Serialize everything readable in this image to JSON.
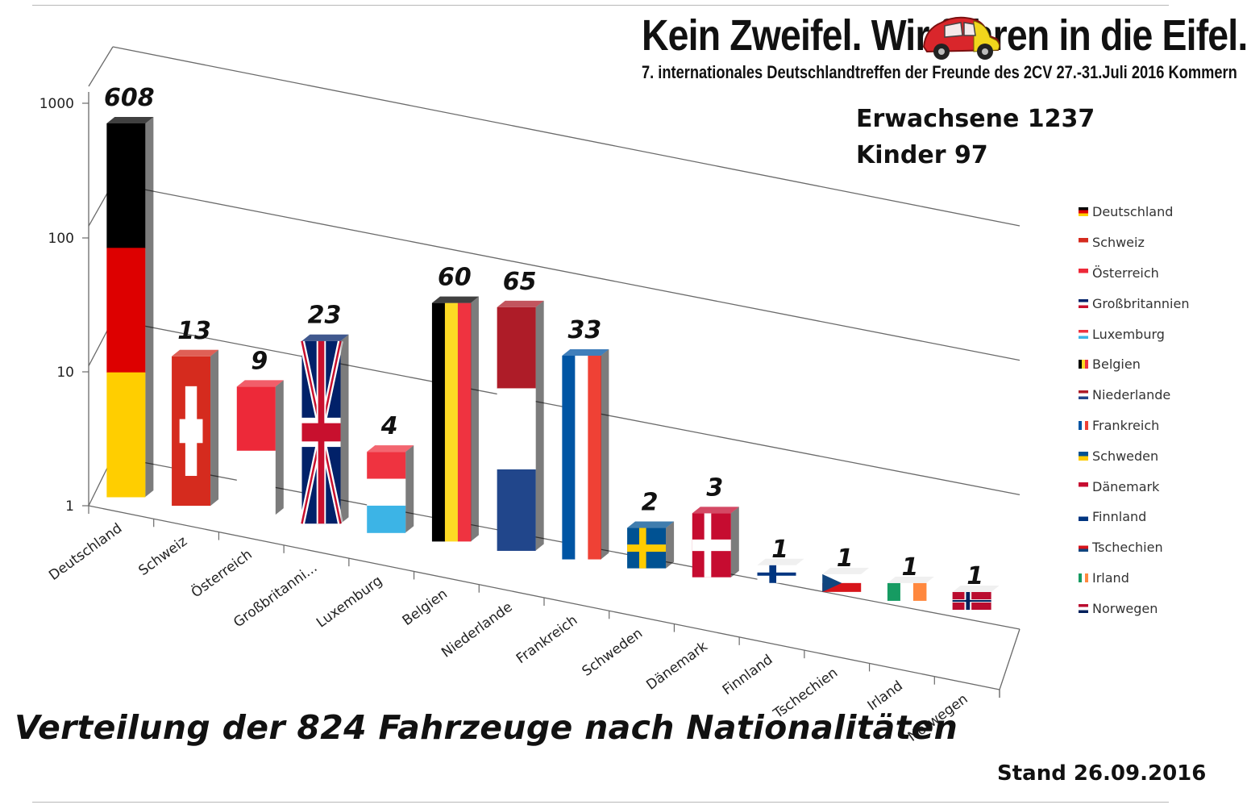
{
  "header": {
    "title": "Kein Zweifel. Wir fahren in die Eifel.",
    "subtitle": "7. internationales Deutschlandtreffen der Freunde des 2CV  27.-31.Juli 2016 Kommern"
  },
  "stats": {
    "adults": "Erwachsene 1237",
    "children": "Kinder 97"
  },
  "footer": {
    "stand": "Stand 26.09.2016"
  },
  "chart_data": {
    "type": "bar",
    "title": "Verteilung der 824 Fahrzeuge nach Nationalitäten",
    "y_scale": "log",
    "ylim": [
      1,
      1000
    ],
    "y_ticks": [
      "1",
      "10",
      "100",
      "1000"
    ],
    "legend_position": "right",
    "categories": [
      "Deutschland",
      "Schweiz",
      "Österreich",
      "Großbritanni...",
      "Luxemburg",
      "Belgien",
      "Niederlande",
      "Frankreich",
      "Schweden",
      "Dänemark",
      "Finnland",
      "Tschechien",
      "Irland",
      "Norwegen"
    ],
    "values": [
      608,
      13,
      9,
      23,
      4,
      60,
      65,
      33,
      2,
      3,
      1,
      1,
      1,
      1
    ],
    "data_labels": [
      "608",
      "13",
      "9",
      "23",
      "4",
      "60",
      "65",
      "33",
      "2",
      "3",
      "1",
      "1",
      "1",
      "1"
    ],
    "legend": [
      "Deutschland",
      "Schweiz",
      "Österreich",
      "Großbritannien",
      "Luxemburg",
      "Belgien",
      "Niederlande",
      "Frankreich",
      "Schweden",
      "Dänemark",
      "Finnland",
      "Tschechien",
      "Irland",
      "Norwegen"
    ],
    "flag_colors": {
      "Deutschland": [
        "#000000",
        "#dd0000",
        "#ffce00"
      ],
      "Schweiz": [
        "#d52b1e",
        "#ffffff"
      ],
      "Österreich": [
        "#ed2939",
        "#ffffff"
      ],
      "Großbritannien": [
        "#012169",
        "#ffffff",
        "#c8102e"
      ],
      "Luxemburg": [
        "#ef3340",
        "#ffffff",
        "#3cb4e6"
      ],
      "Belgien": [
        "#000000",
        "#fdda24",
        "#ef3340"
      ],
      "Niederlande": [
        "#ae1c28",
        "#ffffff",
        "#21468b"
      ],
      "Frankreich": [
        "#0055a4",
        "#ffffff",
        "#ef4135"
      ],
      "Schweden": [
        "#005293",
        "#fecb00"
      ],
      "Dänemark": [
        "#c60c30",
        "#ffffff"
      ],
      "Finnland": [
        "#ffffff",
        "#003580"
      ],
      "Tschechien": [
        "#ffffff",
        "#d7141a",
        "#11457e"
      ],
      "Irland": [
        "#169b62",
        "#ffffff",
        "#ff883e"
      ],
      "Norwegen": [
        "#ba0c2f",
        "#ffffff",
        "#00205b"
      ]
    }
  }
}
